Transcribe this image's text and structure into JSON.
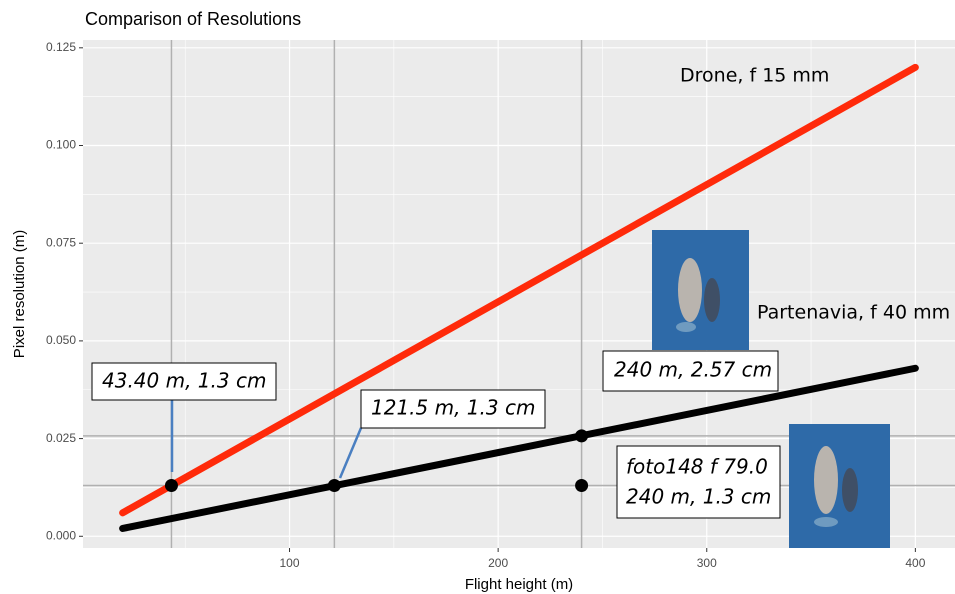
{
  "chart_data": {
    "type": "line",
    "title": "Comparison of Resolutions",
    "x_label": "Flight height (m)",
    "y_label": "Pixel resolution (m)",
    "xlim": [
      1,
      419
    ],
    "ylim": [
      -0.003,
      0.127
    ],
    "xticks": [
      100,
      200,
      300,
      400
    ],
    "yticks": [
      {
        "value": 0,
        "label": "0.000"
      },
      {
        "value": 0.025,
        "label": "0.025"
      },
      {
        "value": 0.05,
        "label": "0.050"
      },
      {
        "value": 0.075,
        "label": "0.075"
      },
      {
        "value": 0.1,
        "label": "0.100"
      },
      {
        "value": 0.125,
        "label": "0.125"
      }
    ],
    "grid": true,
    "series": [
      {
        "color": "#ff2a0a",
        "x": [
          20,
          400
        ],
        "values": [
          0.006,
          0.12
        ]
      },
      {
        "color": "#000000",
        "x": [
          20,
          400
        ],
        "values": [
          0.002,
          0.043
        ]
      }
    ],
    "points": {
      "color": "#000000",
      "x": [
        43.4,
        121.5,
        240,
        240
      ],
      "values": [
        0.013,
        0.013,
        0.0257,
        0.013
      ]
    },
    "vlines": [
      43.4,
      121.5,
      240
    ],
    "hlines": [
      0.0257,
      0.013
    ],
    "annotations": [
      "Drone, f 15 mm",
      "Partenavia, f 40 mm",
      "43.40 m, 1.3 cm",
      "121.5 m, 1.3 cm",
      "240 m, 2.57 cm",
      "foto148 f 79.0",
      "240 m, 1.3 cm"
    ]
  }
}
